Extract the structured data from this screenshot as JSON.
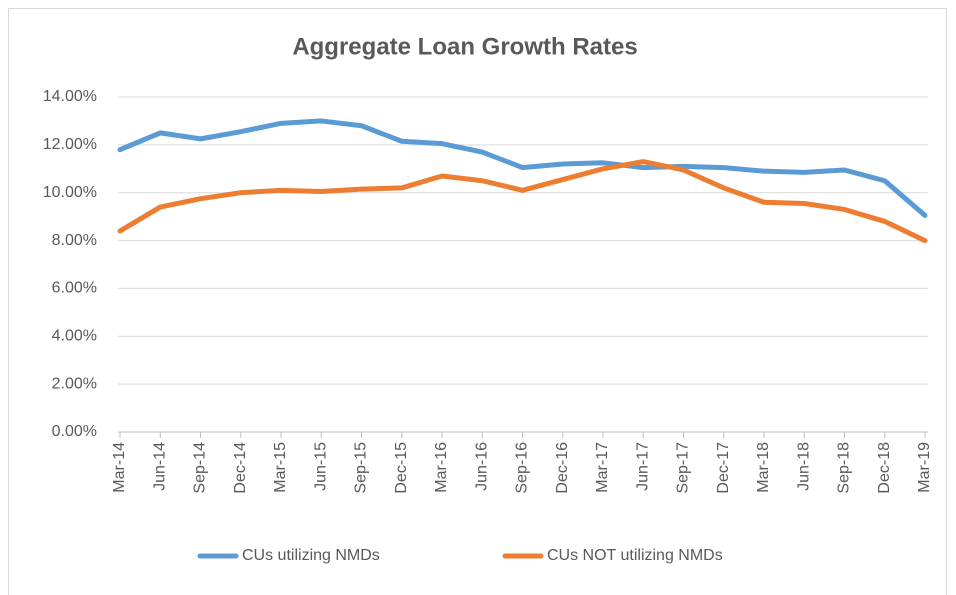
{
  "chart_data": {
    "type": "line",
    "title": "Aggregate Loan Growth Rates",
    "categories": [
      "Mar-14",
      "Jun-14",
      "Sep-14",
      "Dec-14",
      "Mar-15",
      "Jun-15",
      "Sep-15",
      "Dec-15",
      "Mar-16",
      "Jun-16",
      "Sep-16",
      "Dec-16",
      "Mar-17",
      "Jun-17",
      "Sep-17",
      "Dec-17",
      "Mar-18",
      "Jun-18",
      "Sep-18",
      "Dec-18",
      "Mar-19"
    ],
    "series": [
      {
        "name": "CUs utilizing NMDs",
        "color": "#5b9bd5",
        "values": [
          11.8,
          12.5,
          12.25,
          12.55,
          12.9,
          13.0,
          12.8,
          12.15,
          12.05,
          11.7,
          11.05,
          11.2,
          11.25,
          11.05,
          11.1,
          11.05,
          10.9,
          10.85,
          10.95,
          10.5,
          9.05
        ]
      },
      {
        "name": "CUs NOT utilizing NMDs",
        "color": "#ed7d31",
        "values": [
          8.4,
          9.4,
          9.75,
          10.0,
          10.1,
          10.05,
          10.15,
          10.2,
          10.7,
          10.5,
          10.1,
          10.55,
          11.0,
          11.3,
          10.95,
          10.2,
          9.6,
          9.55,
          9.3,
          8.8,
          8.0
        ]
      }
    ],
    "ylim": [
      0,
      14
    ],
    "yticks": [
      {
        "value": 0,
        "label": "0.00%"
      },
      {
        "value": 2,
        "label": "2.00%"
      },
      {
        "value": 4,
        "label": "4.00%"
      },
      {
        "value": 6,
        "label": "6.00%"
      },
      {
        "value": 8,
        "label": "8.00%"
      },
      {
        "value": 10,
        "label": "10.00%"
      },
      {
        "value": 12,
        "label": "12.00%"
      },
      {
        "value": 14,
        "label": "14.00%"
      }
    ],
    "grid": true,
    "legend": "bottom"
  }
}
